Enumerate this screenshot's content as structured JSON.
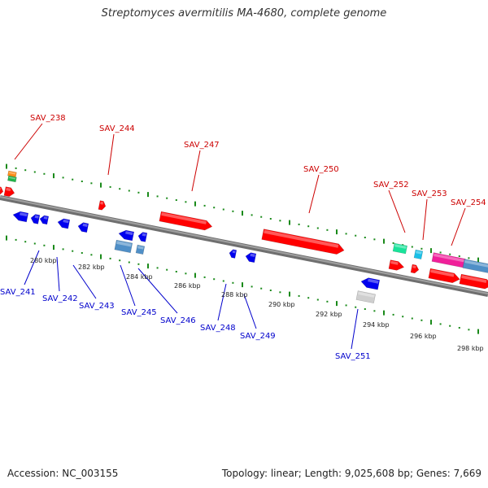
{
  "title": "Streptomyces avermitilis MA-4680, complete genome",
  "footer": {
    "accession": "Accession: NC_003155",
    "summary": "Topology: linear; Length: 9,025,608 bp; Genes: 7,669"
  },
  "colors": {
    "forward_label": "#cc0000",
    "reverse_label": "#0000cc",
    "forward_gene": "#ff0000",
    "reverse_gene": "#0000ee",
    "backbone": "#8a8a8a",
    "tick": "#1a8a1a"
  },
  "scale_labels": [
    "280 kbp",
    "282 kbp",
    "284 kbp",
    "286 kbp",
    "288 kbp",
    "290 kbp",
    "292 kbp",
    "294 kbp",
    "296 kbp",
    "298 kbp"
  ],
  "forward_gene_labels": [
    "SAV_238",
    "SAV_244",
    "SAV_247",
    "SAV_250",
    "SAV_252",
    "SAV_253",
    "SAV_254"
  ],
  "reverse_gene_labels": [
    "SAV_241",
    "SAV_242",
    "SAV_243",
    "SAV_245",
    "SAV_246",
    "SAV_248",
    "SAV_249",
    "SAV_251"
  ]
}
